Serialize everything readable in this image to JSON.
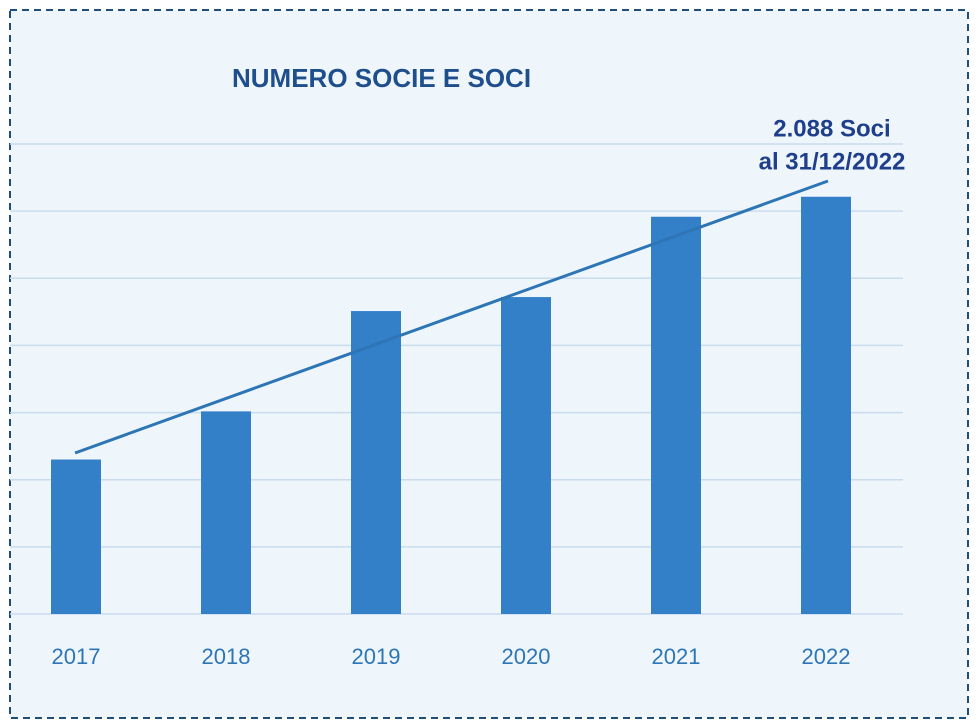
{
  "chart_data": {
    "type": "bar",
    "title": "NUMERO SOCIE E SOCI",
    "annotation": [
      "2.088 Soci",
      "al 31/12/2022"
    ],
    "categories": [
      "2017",
      "2018",
      "2019",
      "2020",
      "2021",
      "2022"
    ],
    "values": [
      773,
      1014,
      1516,
      1586,
      1988,
      2088
    ],
    "color": "#3380c8",
    "ylim": [
      0,
      2352
    ],
    "yticks": [
      0,
      336,
      672,
      1008,
      1344,
      1680,
      2016,
      2352
    ],
    "grid": true
  }
}
